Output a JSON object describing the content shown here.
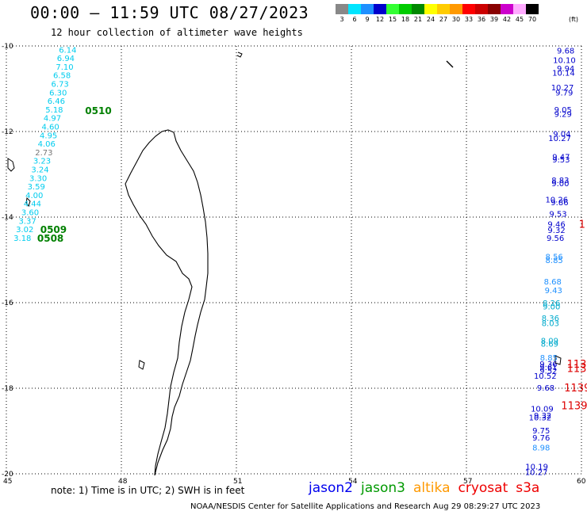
{
  "header": {
    "title": "00:00 — 11:59 UTC 08/27/2023",
    "subtitle": "12 hour collection of altimeter wave heights"
  },
  "legend": {
    "unit": "(ft)",
    "swatches": [
      {
        "label": "3",
        "color": "#888888"
      },
      {
        "label": "6",
        "color": "#00e5ff"
      },
      {
        "label": "9",
        "color": "#1e90ff"
      },
      {
        "label": "12",
        "color": "#0000cc"
      },
      {
        "label": "15",
        "color": "#33ff33"
      },
      {
        "label": "18",
        "color": "#00cc00"
      },
      {
        "label": "21",
        "color": "#008800"
      },
      {
        "label": "24",
        "color": "#ffff00"
      },
      {
        "label": "27",
        "color": "#ffcc00"
      },
      {
        "label": "30",
        "color": "#ff9900"
      },
      {
        "label": "33",
        "color": "#ff0000"
      },
      {
        "label": "36",
        "color": "#cc0000"
      },
      {
        "label": "39",
        "color": "#880000"
      },
      {
        "label": "42",
        "color": "#cc00cc"
      },
      {
        "label": "45",
        "color": "#ffaaff"
      },
      {
        "label": "70",
        "color": "#000000"
      }
    ]
  },
  "axes": {
    "lat_labels": [
      "-10",
      "-12",
      "-14",
      "-16",
      "-18",
      "-20"
    ],
    "lon_labels": [
      "45",
      "48",
      "51",
      "54",
      "57",
      "60"
    ]
  },
  "observations_left": [
    {
      "v": "6.14",
      "lon": 46.6,
      "lat": -10.08,
      "c": "#00ccee"
    },
    {
      "v": "6.94",
      "lon": 46.55,
      "lat": -10.28,
      "c": "#00ccee"
    },
    {
      "v": "7.10",
      "lon": 46.52,
      "lat": -10.48,
      "c": "#00ccee"
    },
    {
      "v": "6.58",
      "lon": 46.45,
      "lat": -10.68,
      "c": "#00ccee"
    },
    {
      "v": "6.73",
      "lon": 46.4,
      "lat": -10.88,
      "c": "#00ccee"
    },
    {
      "v": "6.30",
      "lon": 46.35,
      "lat": -11.08,
      "c": "#00ccee"
    },
    {
      "v": "6.46",
      "lon": 46.3,
      "lat": -11.28,
      "c": "#00ccee"
    },
    {
      "v": "5.18",
      "lon": 46.25,
      "lat": -11.48,
      "c": "#00ccee"
    },
    {
      "v": "4.97",
      "lon": 46.2,
      "lat": -11.68,
      "c": "#00ccee"
    },
    {
      "v": "4.60",
      "lon": 46.15,
      "lat": -11.88,
      "c": "#00ccee"
    },
    {
      "v": "4.95",
      "lon": 46.1,
      "lat": -12.08,
      "c": "#00ccee"
    },
    {
      "v": "4.06",
      "lon": 46.05,
      "lat": -12.28,
      "c": "#00ccee"
    },
    {
      "v": "2.73",
      "lon": 45.98,
      "lat": -12.48,
      "c": "#777777"
    },
    {
      "v": "3.23",
      "lon": 45.93,
      "lat": -12.68,
      "c": "#00ccee"
    },
    {
      "v": "3.24",
      "lon": 45.88,
      "lat": -12.88,
      "c": "#00ccee"
    },
    {
      "v": "3.30",
      "lon": 45.83,
      "lat": -13.08,
      "c": "#00ccee"
    },
    {
      "v": "3.59",
      "lon": 45.78,
      "lat": -13.28,
      "c": "#00ccee"
    },
    {
      "v": "4.00",
      "lon": 45.73,
      "lat": -13.48,
      "c": "#00ccee"
    },
    {
      "v": "4.44",
      "lon": 45.68,
      "lat": -13.68,
      "c": "#00ccee"
    },
    {
      "v": "3.60",
      "lon": 45.62,
      "lat": -13.88,
      "c": "#00ccee"
    },
    {
      "v": "3.37",
      "lon": 45.55,
      "lat": -14.08,
      "c": "#00ccee"
    },
    {
      "v": "3.02",
      "lon": 45.48,
      "lat": -14.28,
      "c": "#00ccee"
    },
    {
      "v": "3.18",
      "lon": 45.42,
      "lat": -14.48,
      "c": "#00ccee"
    }
  ],
  "pass_times": [
    {
      "v": "0510",
      "lon": 47.4,
      "lat": -11.5
    },
    {
      "v": "0509",
      "lon": 46.23,
      "lat": -14.28
    },
    {
      "v": "0508",
      "lon": 46.15,
      "lat": -14.48
    }
  ],
  "observations_right": [
    {
      "v": "9.68",
      "lon": 59.82,
      "lat": -10.1,
      "c": "#0000cc"
    },
    {
      "v": "10.10",
      "lon": 59.85,
      "lat": -10.32,
      "c": "#0000cc"
    },
    {
      "v": "9.94",
      "lon": 59.82,
      "lat": -10.52,
      "c": "#0000cc"
    },
    {
      "v": "10.14",
      "lon": 59.83,
      "lat": -10.62,
      "c": "#0000cc"
    },
    {
      "v": "10.27",
      "lon": 59.8,
      "lat": -10.96,
      "c": "#0000cc"
    },
    {
      "v": "9.79",
      "lon": 59.78,
      "lat": -11.08,
      "c": "#0000cc"
    },
    {
      "v": "9.05",
      "lon": 59.75,
      "lat": -11.48,
      "c": "#0000cc"
    },
    {
      "v": "9.29",
      "lon": 59.75,
      "lat": -11.58,
      "c": "#0000cc"
    },
    {
      "v": "9.04",
      "lon": 59.72,
      "lat": -12.05,
      "c": "#0000cc"
    },
    {
      "v": "10.27",
      "lon": 59.73,
      "lat": -12.15,
      "c": "#0000cc"
    },
    {
      "v": "9.47",
      "lon": 59.7,
      "lat": -12.58,
      "c": "#0000cc"
    },
    {
      "v": "9.53",
      "lon": 59.7,
      "lat": -12.65,
      "c": "#0000cc"
    },
    {
      "v": "8.83",
      "lon": 59.68,
      "lat": -13.13,
      "c": "#0000cc"
    },
    {
      "v": "9.00",
      "lon": 59.68,
      "lat": -13.2,
      "c": "#0000cc"
    },
    {
      "v": "10.26",
      "lon": 59.65,
      "lat": -13.58,
      "c": "#0000cc"
    },
    {
      "v": "9.86",
      "lon": 59.66,
      "lat": -13.65,
      "c": "#0000cc"
    },
    {
      "v": "9.53",
      "lon": 59.62,
      "lat": -13.92,
      "c": "#0000cc"
    },
    {
      "v": "9.46",
      "lon": 59.58,
      "lat": -14.16,
      "c": "#0000cc"
    },
    {
      "v": "9.32",
      "lon": 59.58,
      "lat": -14.3,
      "c": "#0000cc"
    },
    {
      "v": "9.56",
      "lon": 59.55,
      "lat": -14.48,
      "c": "#0000cc"
    },
    {
      "v": "8.56",
      "lon": 59.52,
      "lat": -14.92,
      "c": "#1e90ff"
    },
    {
      "v": "8.85",
      "lon": 59.52,
      "lat": -15.0,
      "c": "#1e90ff"
    },
    {
      "v": "8.68",
      "lon": 59.48,
      "lat": -15.5,
      "c": "#1e90ff"
    },
    {
      "v": "9.43",
      "lon": 59.5,
      "lat": -15.7,
      "c": "#1e90ff"
    },
    {
      "v": "8.26",
      "lon": 59.45,
      "lat": -16.0,
      "c": "#00aacc"
    },
    {
      "v": "9.00",
      "lon": 59.45,
      "lat": -16.08,
      "c": "#00aacc"
    },
    {
      "v": "8.36",
      "lon": 59.42,
      "lat": -16.35,
      "c": "#00aacc"
    },
    {
      "v": "8.03",
      "lon": 59.42,
      "lat": -16.47,
      "c": "#00aacc"
    },
    {
      "v": "8.09",
      "lon": 59.4,
      "lat": -16.88,
      "c": "#00aacc"
    },
    {
      "v": "8.69",
      "lon": 59.4,
      "lat": -16.95,
      "c": "#00aacc"
    },
    {
      "v": "8.85",
      "lon": 59.38,
      "lat": -17.28,
      "c": "#1e90ff"
    },
    {
      "v": "9.36",
      "lon": 59.37,
      "lat": -17.43,
      "c": "#0000cc"
    },
    {
      "v": "9.61",
      "lon": 59.37,
      "lat": -17.5,
      "c": "#0000cc"
    },
    {
      "v": "9.52",
      "lon": 59.37,
      "lat": -17.58,
      "c": "#0000cc"
    },
    {
      "v": "10.52",
      "lon": 59.35,
      "lat": -17.7,
      "c": "#0000cc"
    },
    {
      "v": "9.68",
      "lon": 59.3,
      "lat": -17.98,
      "c": "#0000cc"
    },
    {
      "v": "10.09",
      "lon": 59.27,
      "lat": -18.47,
      "c": "#0000cc"
    },
    {
      "v": "9.32",
      "lon": 59.22,
      "lat": -18.63,
      "c": "#0000cc"
    },
    {
      "v": "10.32",
      "lon": 59.22,
      "lat": -18.68,
      "c": "#0000cc"
    },
    {
      "v": "9.75",
      "lon": 59.18,
      "lat": -18.98,
      "c": "#0000cc"
    },
    {
      "v": "9.76",
      "lon": 59.18,
      "lat": -19.15,
      "c": "#0000cc"
    },
    {
      "v": "8.98",
      "lon": 59.18,
      "lat": -19.38,
      "c": "#1e90ff"
    },
    {
      "v": "10.19",
      "lon": 59.13,
      "lat": -19.82,
      "c": "#0000cc"
    },
    {
      "v": "10.27",
      "lon": 59.12,
      "lat": -19.95,
      "c": "#0000cc"
    }
  ],
  "right_edge_times": [
    {
      "v": "1",
      "lon": 59.93,
      "lat": -14.16
    },
    {
      "v": "113",
      "lon": 59.62,
      "lat": -17.43
    },
    {
      "v": "113",
      "lon": 59.62,
      "lat": -17.53
    },
    {
      "v": "1139",
      "lon": 59.55,
      "lat": -17.98
    },
    {
      "v": "1139",
      "lon": 59.47,
      "lat": -18.4
    }
  ],
  "footer": {
    "note": "note: 1) Time is in UTC; 2) SWH is in feet",
    "satellites": [
      {
        "name": "jason2",
        "color": "#0000ee"
      },
      {
        "name": "jason3",
        "color": "#009900"
      },
      {
        "name": "altika",
        "color": "#ff9900"
      },
      {
        "name": "cryosat",
        "color": "#ee0000"
      },
      {
        "name": "s3a",
        "color": "#ee0000"
      }
    ],
    "credit": "NOAA/NESDIS Center for Satellite Applications and Research    Aug 29 08:29:27 UTC 2023"
  }
}
